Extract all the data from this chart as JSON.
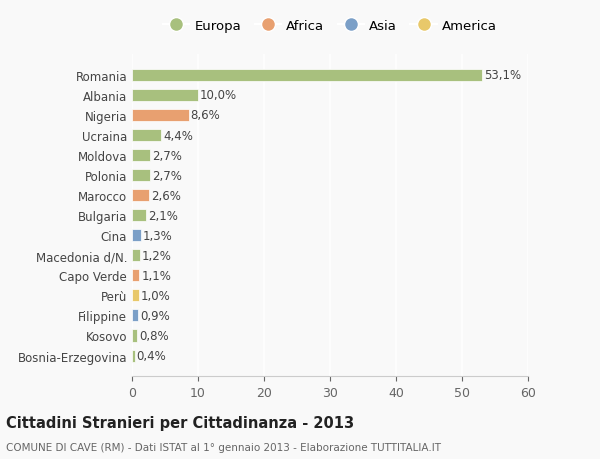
{
  "countries": [
    "Bosnia-Erzegovina",
    "Kosovo",
    "Filippine",
    "Perù",
    "Capo Verde",
    "Macedonia d/N.",
    "Cina",
    "Bulgaria",
    "Marocco",
    "Polonia",
    "Moldova",
    "Ucraina",
    "Nigeria",
    "Albania",
    "Romania"
  ],
  "values": [
    0.4,
    0.8,
    0.9,
    1.0,
    1.1,
    1.2,
    1.3,
    2.1,
    2.6,
    2.7,
    2.7,
    4.4,
    8.6,
    10.0,
    53.1
  ],
  "labels": [
    "0,4%",
    "0,8%",
    "0,9%",
    "1,0%",
    "1,1%",
    "1,2%",
    "1,3%",
    "2,1%",
    "2,6%",
    "2,7%",
    "2,7%",
    "4,4%",
    "8,6%",
    "10,0%",
    "53,1%"
  ],
  "colors": [
    "#a8c07e",
    "#a8c07e",
    "#7b9fc7",
    "#e8c86a",
    "#e8a070",
    "#a8c07e",
    "#7b9fc7",
    "#a8c07e",
    "#e8a070",
    "#a8c07e",
    "#a8c07e",
    "#a8c07e",
    "#e8a070",
    "#a8c07e",
    "#a8c07e"
  ],
  "legend_labels": [
    "Europa",
    "Africa",
    "Asia",
    "America"
  ],
  "legend_colors": [
    "#a8c07e",
    "#e8a070",
    "#7b9fc7",
    "#e8c86a"
  ],
  "title": "Cittadini Stranieri per Cittadinanza - 2013",
  "subtitle": "COMUNE DI CAVE (RM) - Dati ISTAT al 1° gennaio 2013 - Elaborazione TUTTITALIA.IT",
  "xlim": [
    0,
    60
  ],
  "xticks": [
    0,
    10,
    20,
    30,
    40,
    50,
    60
  ],
  "background_color": "#f9f9f9",
  "grid_color": "#ffffff",
  "axes_color": "#cccccc"
}
